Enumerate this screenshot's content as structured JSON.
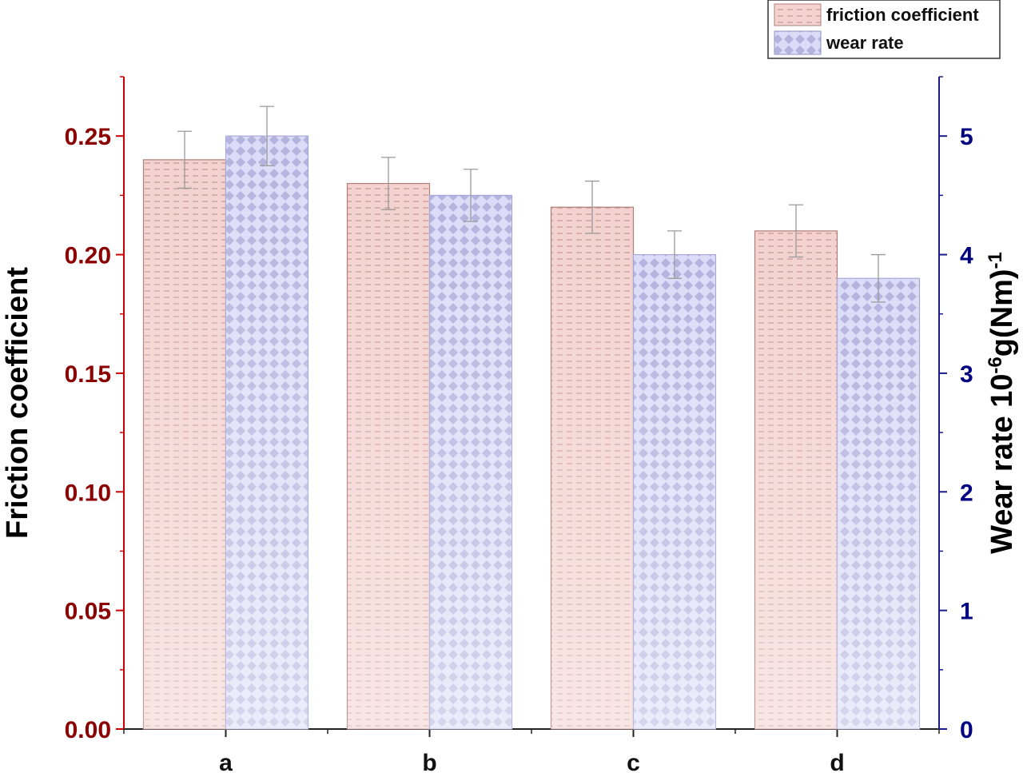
{
  "chart_data": {
    "type": "bar",
    "categories": [
      "a",
      "b",
      "c",
      "d"
    ],
    "series": [
      {
        "name": "friction coefficient",
        "axis": "left",
        "values": [
          0.24,
          0.23,
          0.22,
          0.21
        ],
        "errors": [
          0.012,
          0.011,
          0.011,
          0.011
        ],
        "color": "#e8b4b0",
        "pattern": "dashes"
      },
      {
        "name": "wear rate",
        "axis": "right",
        "values": [
          5.0,
          4.5,
          4.0,
          3.8
        ],
        "errors": [
          0.25,
          0.22,
          0.2,
          0.2
        ],
        "color": "#b8b8f0",
        "pattern": "diamonds"
      }
    ],
    "left_axis": {
      "label": "Friction coefficient",
      "ylim": [
        0,
        0.275
      ],
      "ticks": [
        "0.00",
        "0.05",
        "0.10",
        "0.15",
        "0.20",
        "0.25"
      ],
      "color": "#8b0000"
    },
    "right_axis": {
      "label_main": "Wear rate 10",
      "label_sup1": "-6",
      "label_mid": "g(Nm)",
      "label_sup2": "-1",
      "ylim": [
        0,
        5.5
      ],
      "ticks": [
        "0",
        "1",
        "2",
        "3",
        "4",
        "5"
      ],
      "color": "#000080"
    },
    "legend": {
      "position": "top-right",
      "entries": [
        "friction coefficient",
        "wear rate"
      ]
    },
    "grid": false
  }
}
